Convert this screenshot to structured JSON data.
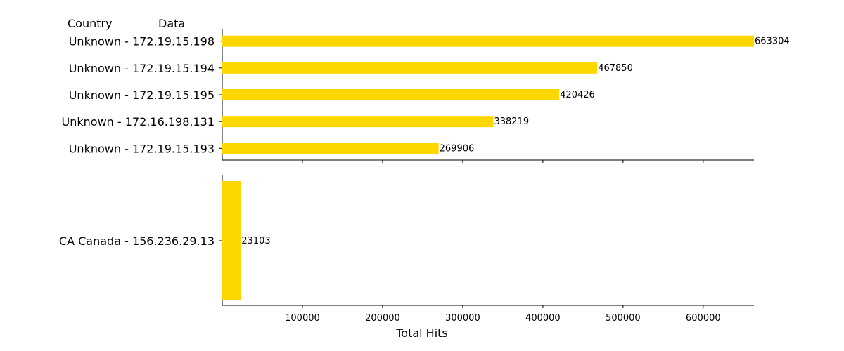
{
  "chart_data": {
    "type": "bar",
    "orientation": "horizontal",
    "column_headers": [
      "Country",
      "Data"
    ],
    "xlabel": "Total Hits",
    "x_ticks": [
      100000,
      200000,
      300000,
      400000,
      500000,
      600000
    ],
    "xlim": [
      0,
      663304
    ],
    "bar_color": "#FFD700",
    "panels": [
      {
        "categories": [
          "Unknown - 172.19.15.198",
          "Unknown - 172.19.15.194",
          "Unknown - 172.19.15.195",
          "Unknown - 172.16.198.131",
          "Unknown - 172.19.15.193"
        ],
        "values": [
          663304,
          467850,
          420426,
          338219,
          269906
        ]
      },
      {
        "categories": [
          "CA Canada - 156.236.29.13"
        ],
        "values": [
          23103
        ]
      }
    ]
  }
}
